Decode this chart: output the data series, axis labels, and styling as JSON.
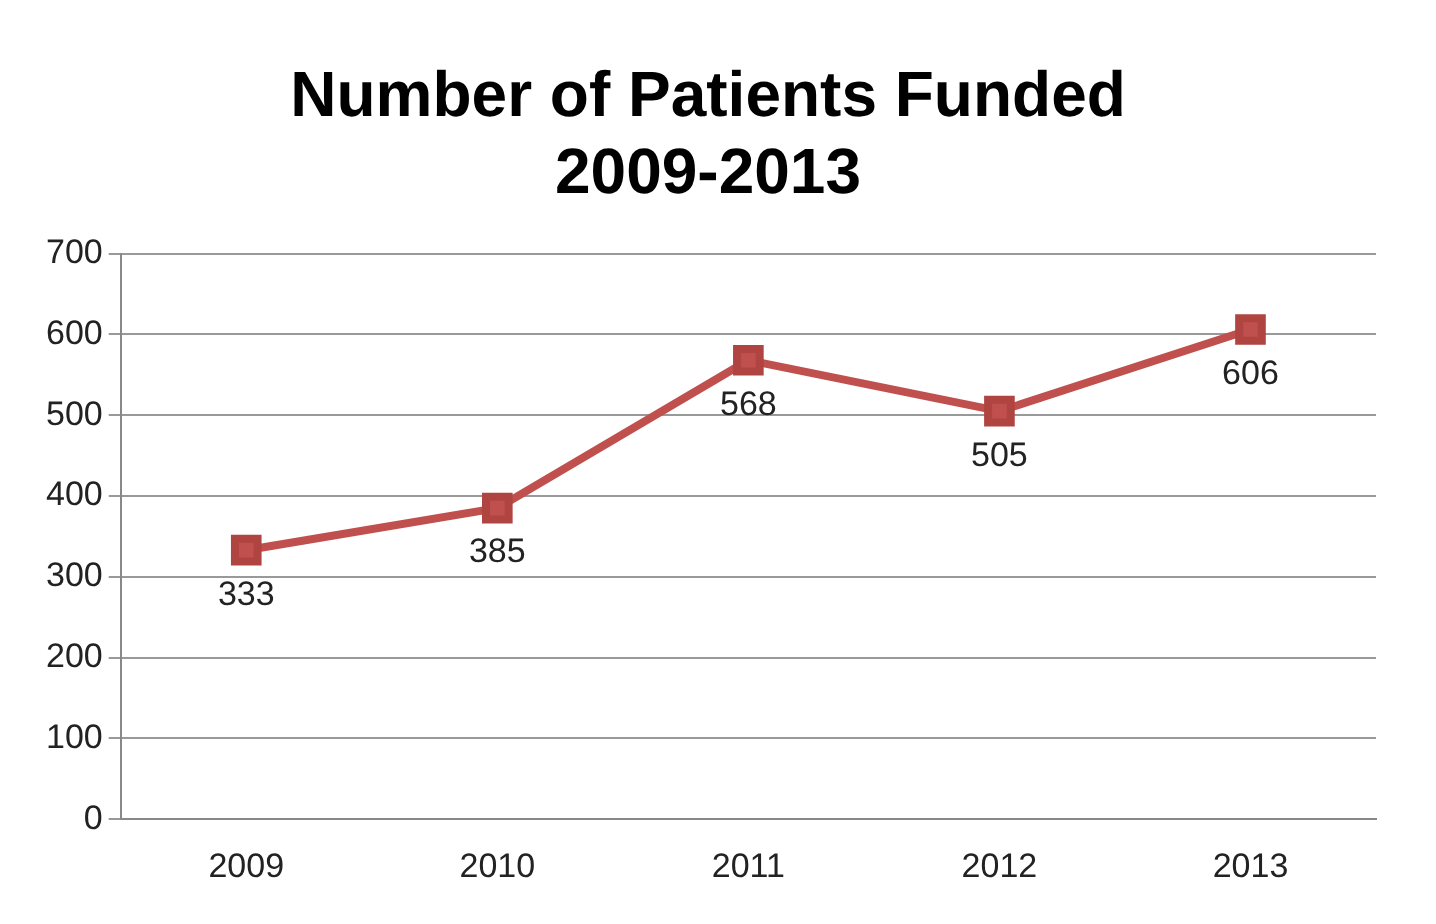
{
  "chart_data": {
    "type": "line",
    "title": "Number of Patients Funded\n2009-2013",
    "categories": [
      "2009",
      "2010",
      "2011",
      "2012",
      "2013"
    ],
    "series": [
      {
        "color": "#c0504d",
        "values": [
          333,
          385,
          568,
          505,
          606
        ]
      }
    ],
    "ylim": [
      0,
      700
    ],
    "yticks": [
      0,
      100,
      200,
      300,
      400,
      500,
      600,
      700
    ],
    "grid": "y",
    "legend": false,
    "marker": "square",
    "line_style": "solid",
    "data_labels": true
  }
}
